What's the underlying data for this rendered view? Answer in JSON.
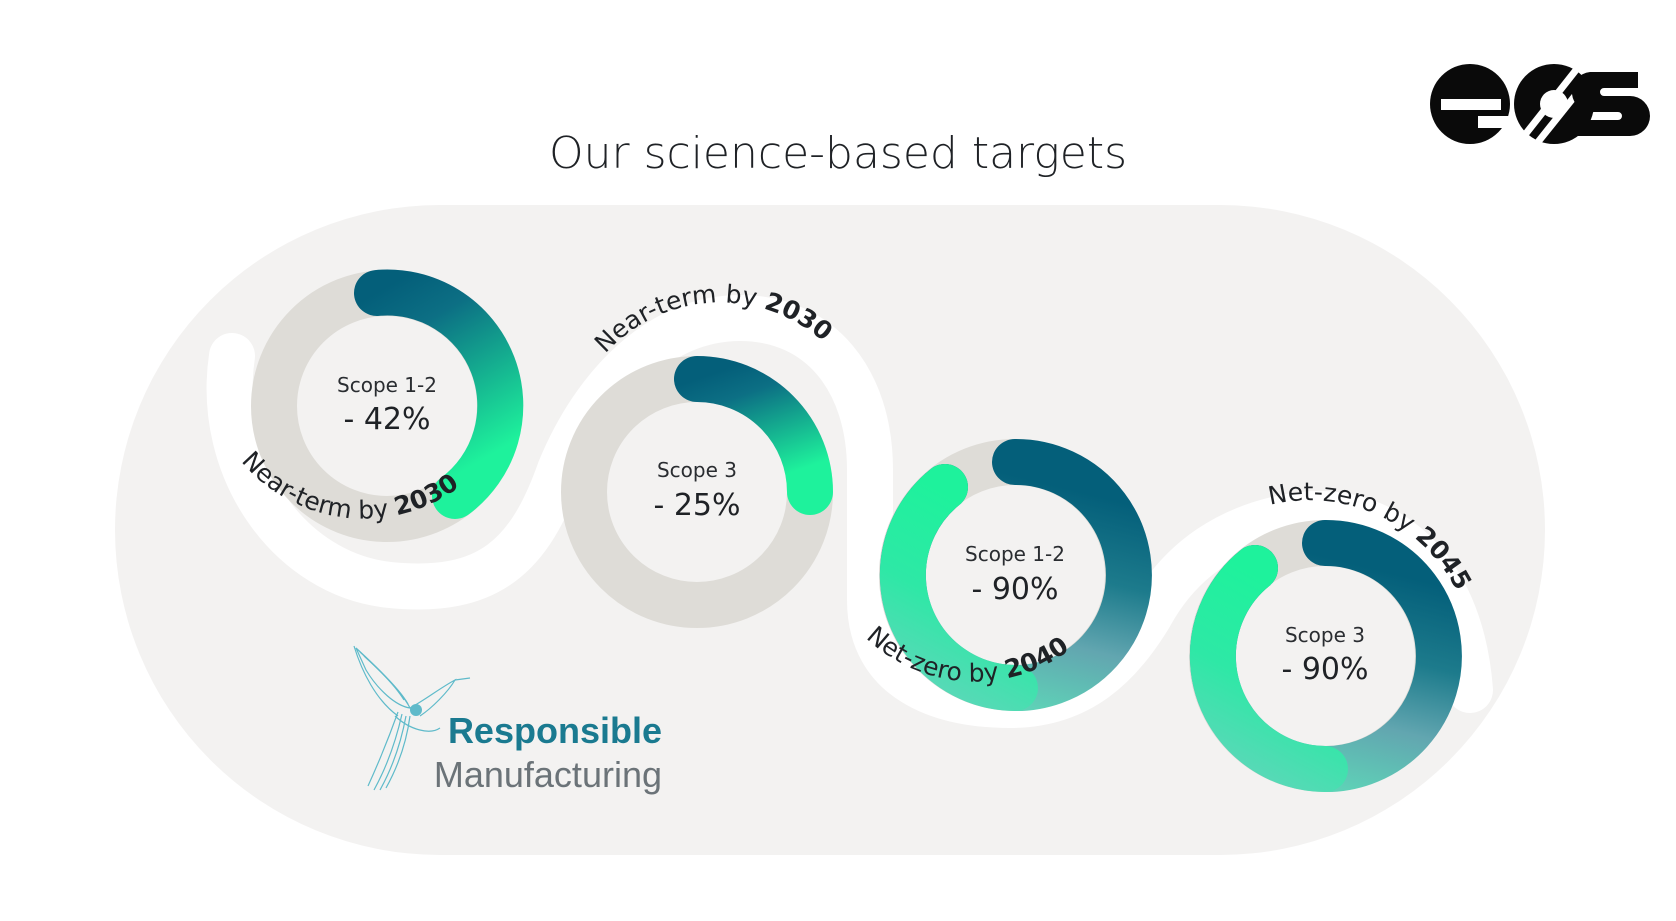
{
  "title": "Our science-based targets",
  "logo_text": "eos",
  "brand": {
    "line1": "Responsible",
    "line2": "Manufacturing",
    "icon": "hummingbird-icon"
  },
  "colors": {
    "panel": "#f3f2f1",
    "track": "#dedcd7",
    "green": "#1ef29c",
    "teal": "#045f7a",
    "grey_teal": "#62a6b0"
  },
  "targets": [
    {
      "scope": "Scope 1-2",
      "value": "- 42%",
      "reduction_percent": 42,
      "caption": {
        "prefix": "Near-term by ",
        "year": "2030"
      }
    },
    {
      "scope": "Scope 3",
      "value": "- 25%",
      "reduction_percent": 25,
      "caption": {
        "prefix": "Near-term by ",
        "year": "2030"
      }
    },
    {
      "scope": "Scope 1-2",
      "value": "- 90%",
      "reduction_percent": 90,
      "caption": {
        "prefix": "Net-zero by ",
        "year": "2040"
      }
    },
    {
      "scope": "Scope 3",
      "value": "- 90%",
      "reduction_percent": 90,
      "caption": {
        "prefix": "Net-zero by ",
        "year": "2045"
      }
    }
  ]
}
